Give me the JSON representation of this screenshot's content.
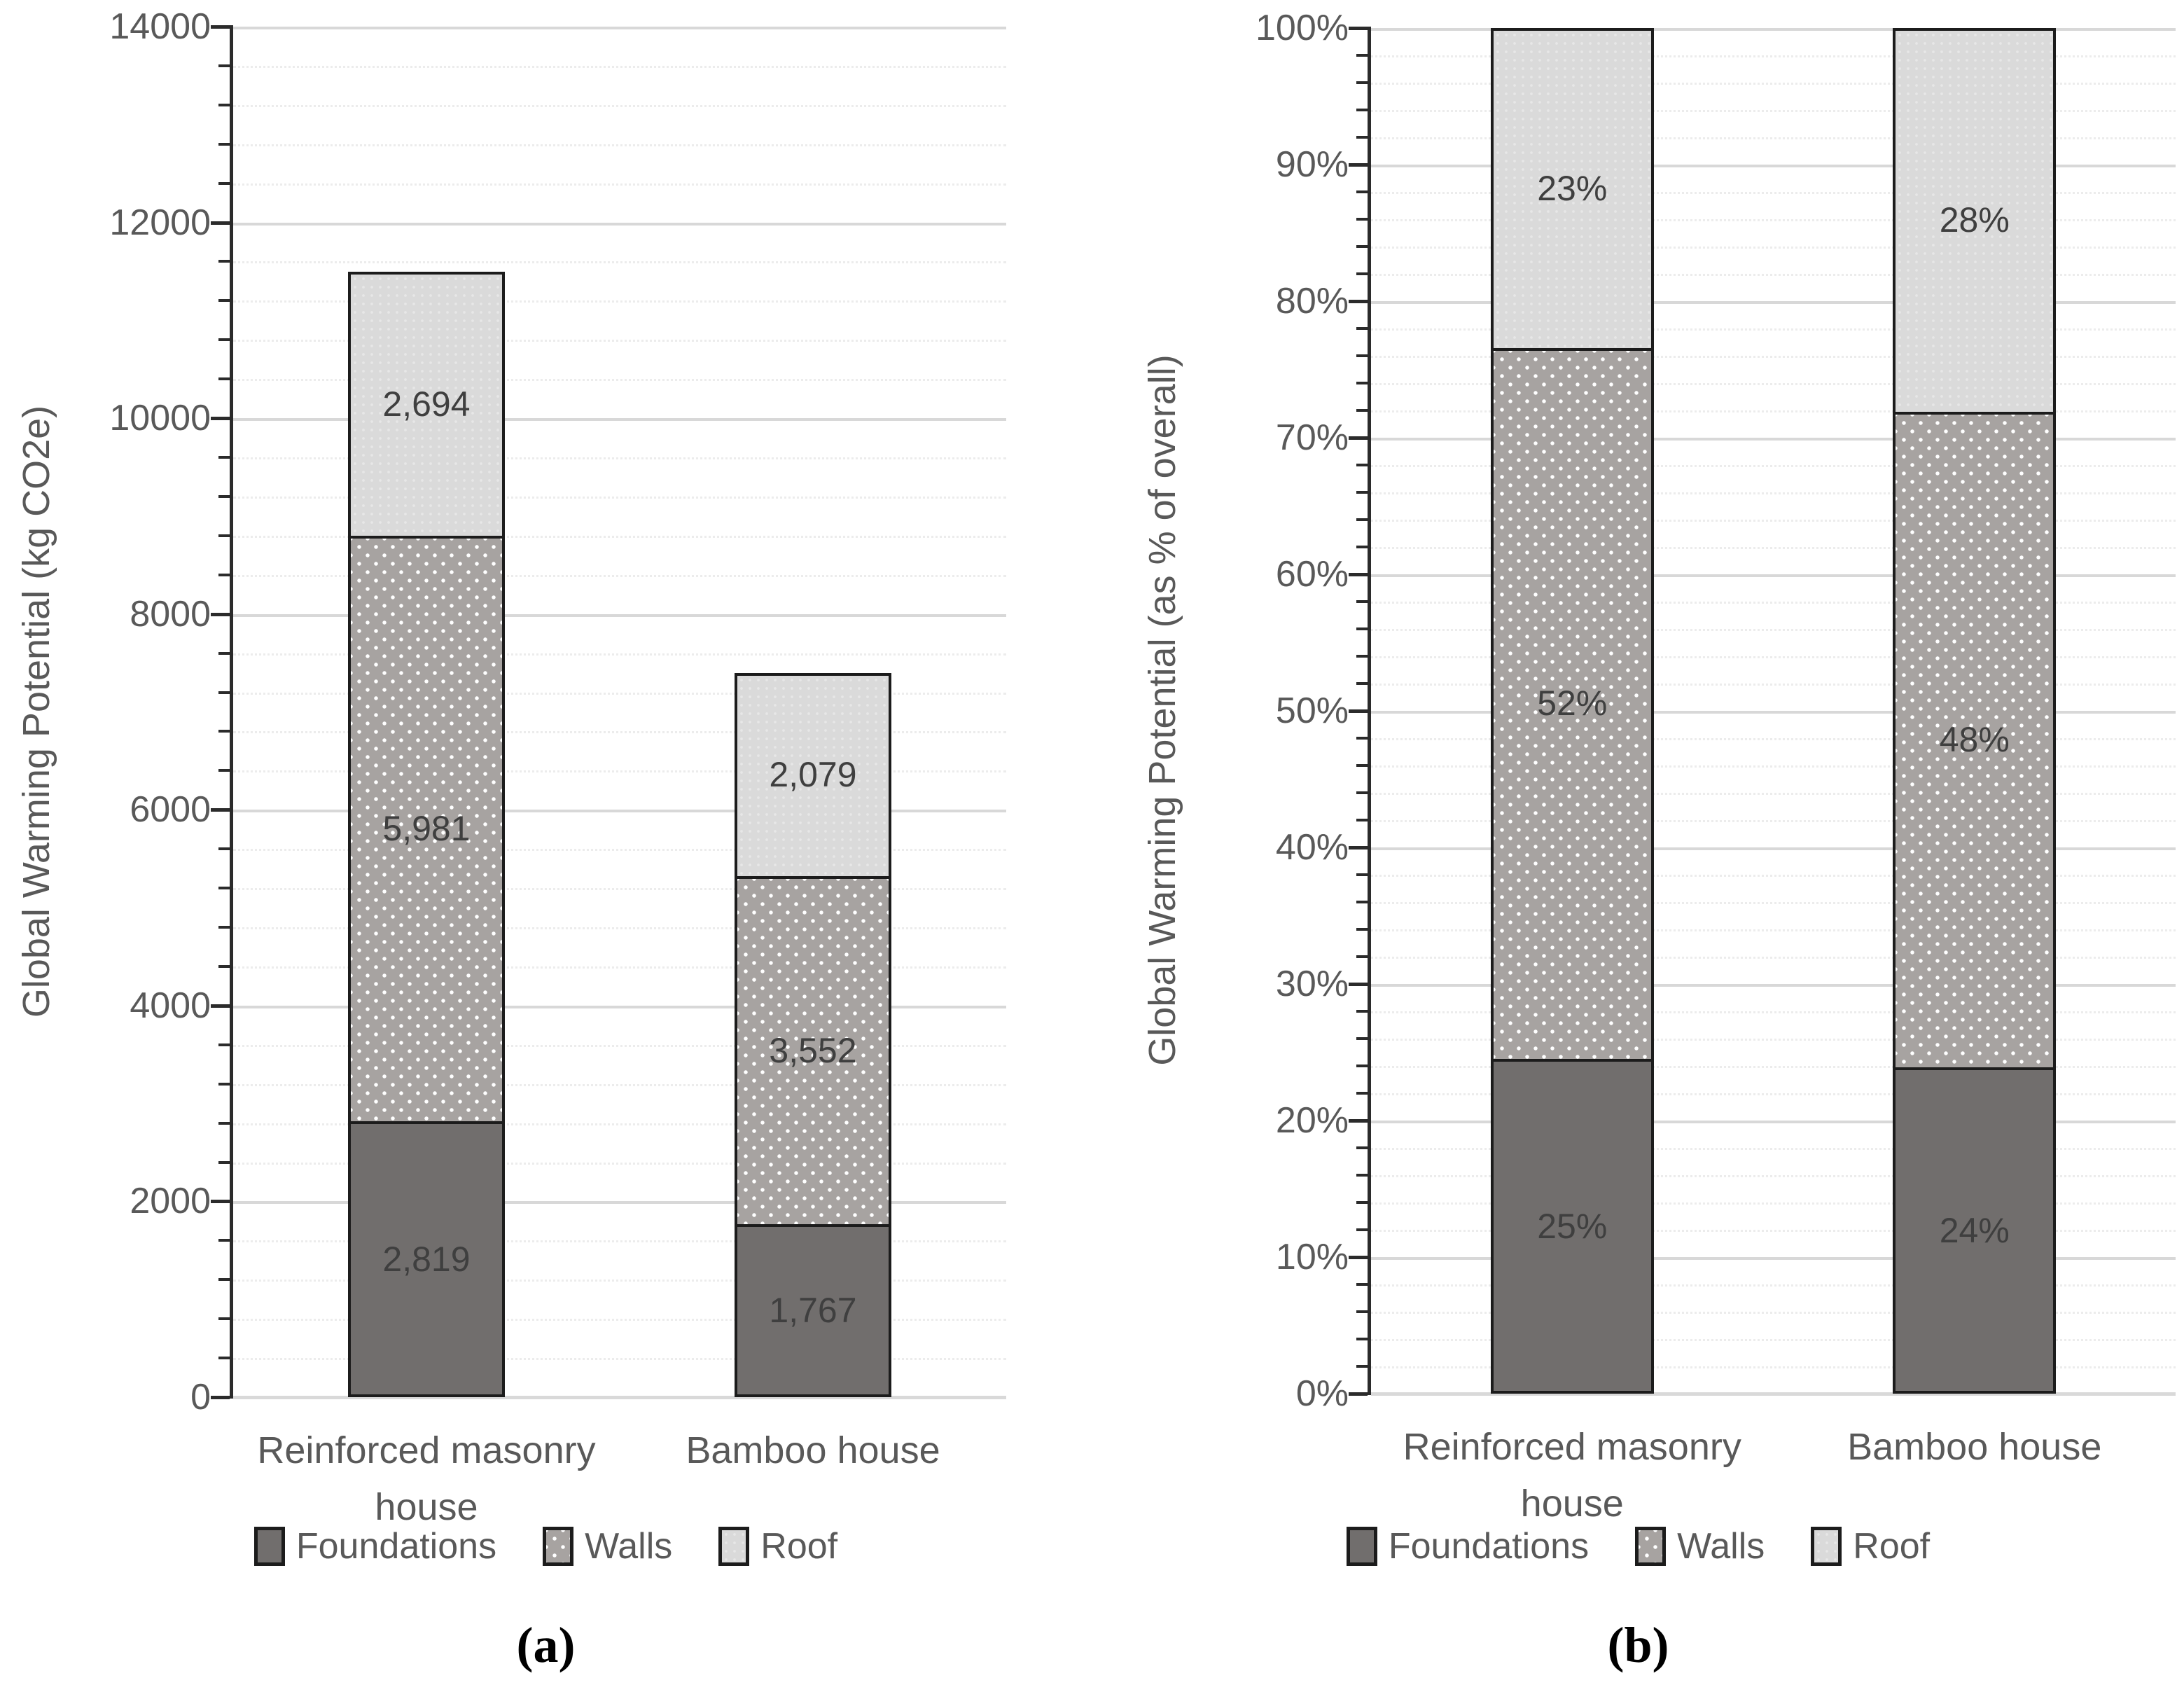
{
  "figure": {
    "caption_a": "(a)",
    "caption_b": "(b)"
  },
  "colors": {
    "foundations_fill": "#716E6D",
    "walls_fill": "#A7A3A1",
    "walls_dot": "#FFFFFF",
    "roof_fill": "#DADADA",
    "bar_outline": "#1C1C1C",
    "axis_line": "#2B2B2B",
    "axis_text": "#595959",
    "data_label_text": "#3F3F3F",
    "gridline_major": "#D8D8D8",
    "gridline_minor": "#ECECEC",
    "x_baseline": "#D9D9D9",
    "caption_text": "#000000"
  },
  "chart_data": [
    {
      "type": "bar",
      "stacked": true,
      "panel": "a",
      "caption": "(a)",
      "ylabel": "Global Warming Potential (kg CO2e)",
      "categories": [
        "Reinforced masonry house",
        "Bamboo house"
      ],
      "series": [
        {
          "name": "Foundations",
          "pattern": "solid-dark-gray",
          "values": [
            2819,
            1767
          ],
          "data_labels": [
            "2,819",
            "1,767"
          ]
        },
        {
          "name": "Walls",
          "pattern": "white-dots-on-gray",
          "values": [
            5981,
            3552
          ],
          "data_labels": [
            "5,981",
            "3,552"
          ]
        },
        {
          "name": "Roof",
          "pattern": "light-gray",
          "values": [
            2694,
            2079
          ],
          "data_labels": [
            "2,694",
            "2,079"
          ]
        }
      ],
      "ylim": [
        0,
        14000
      ],
      "ymajor": 2000,
      "yminor": 400,
      "ytick_labels": [
        "0",
        "2000",
        "4000",
        "6000",
        "8000",
        "10000",
        "12000",
        "14000"
      ],
      "grid": true,
      "legend": [
        "Foundations",
        "Walls",
        "Roof"
      ],
      "legend_position": "bottom"
    },
    {
      "type": "bar",
      "stacked": true,
      "panel": "b",
      "caption": "(b)",
      "ylabel": "Global Warming Potential (as % of overall)",
      "categories": [
        "Reinforced masonry house",
        "Bamboo house"
      ],
      "series": [
        {
          "name": "Foundations",
          "pattern": "solid-dark-gray",
          "values": [
            24.53,
            23.89
          ],
          "data_labels": [
            "25%",
            "24%"
          ]
        },
        {
          "name": "Walls",
          "pattern": "white-dots-on-gray",
          "values": [
            52.03,
            48.01
          ],
          "data_labels": [
            "52%",
            "48%"
          ]
        },
        {
          "name": "Roof",
          "pattern": "light-gray",
          "values": [
            23.44,
            28.1
          ],
          "data_labels": [
            "23%",
            "28%"
          ]
        }
      ],
      "ylim": [
        0,
        100
      ],
      "ymajor": 10,
      "yminor": 2,
      "ytick_labels": [
        "0%",
        "10%",
        "20%",
        "30%",
        "40%",
        "50%",
        "60%",
        "70%",
        "80%",
        "90%",
        "100%"
      ],
      "grid": true,
      "legend": [
        "Foundations",
        "Walls",
        "Roof"
      ],
      "legend_position": "bottom"
    }
  ]
}
